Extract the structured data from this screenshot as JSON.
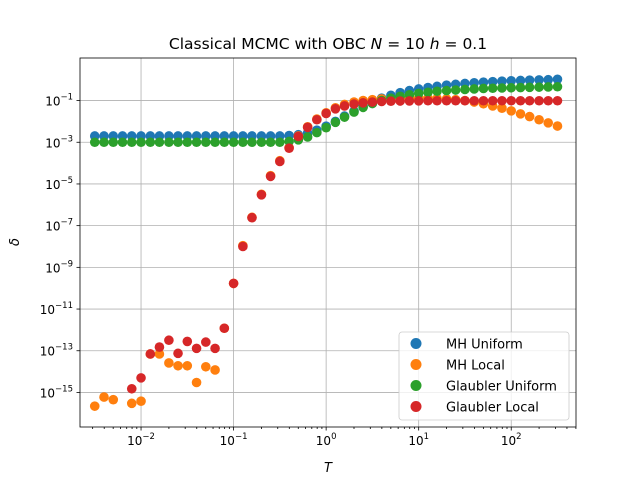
{
  "chart_data": {
    "type": "scatter",
    "title_parts": [
      "Classical MCMC with OBC ",
      "N",
      " =  10 ",
      "h",
      " =  0.1"
    ],
    "xlabel": "T",
    "ylabel": "δ",
    "xscale": "log",
    "yscale": "log",
    "xlim": [
      0.00219,
      501
    ],
    "ylim": [
      2.2e-17,
      11.0
    ],
    "grid": true,
    "legend_position": "lower right",
    "x_ticks": [
      {
        "value": 0.01,
        "base": "10",
        "exp": "−2"
      },
      {
        "value": 0.1,
        "base": "10",
        "exp": "−1"
      },
      {
        "value": 1,
        "base": "10",
        "exp": "0"
      },
      {
        "value": 10,
        "base": "10",
        "exp": "1"
      },
      {
        "value": 100,
        "base": "10",
        "exp": "2"
      }
    ],
    "y_ticks": [
      {
        "value": 1e-15,
        "base": "10",
        "exp": "−15"
      },
      {
        "value": 1e-13,
        "base": "10",
        "exp": "−13"
      },
      {
        "value": 1e-11,
        "base": "10",
        "exp": "−11"
      },
      {
        "value": 1e-09,
        "base": "10",
        "exp": "−9"
      },
      {
        "value": 1e-07,
        "base": "10",
        "exp": "−7"
      },
      {
        "value": 1e-05,
        "base": "10",
        "exp": "−5"
      },
      {
        "value": 0.001,
        "base": "10",
        "exp": "−3"
      },
      {
        "value": 0.1,
        "base": "10",
        "exp": "−1"
      }
    ],
    "x": [
      0.00316,
      0.00398,
      0.00501,
      0.00631,
      0.00794,
      0.01,
      0.0126,
      0.0158,
      0.02,
      0.0251,
      0.0316,
      0.0398,
      0.0501,
      0.0631,
      0.0794,
      0.1,
      0.126,
      0.158,
      0.2,
      0.251,
      0.316,
      0.398,
      0.501,
      0.631,
      0.794,
      1.0,
      1.26,
      1.58,
      2.0,
      2.51,
      3.16,
      3.98,
      5.01,
      6.31,
      7.94,
      10.0,
      12.6,
      15.8,
      20.0,
      25.1,
      31.6,
      39.8,
      50.1,
      63.1,
      79.4,
      100,
      126,
      158,
      200,
      251,
      316
    ],
    "series": [
      {
        "name": "MH Uniform",
        "color": "#1f77b4",
        "values": [
          0.002,
          0.002,
          0.002,
          0.002,
          0.002,
          0.002,
          0.002,
          0.002,
          0.002,
          0.002,
          0.002,
          0.002,
          0.002,
          0.002,
          0.002,
          0.002,
          0.002,
          0.002,
          0.002,
          0.002,
          0.002,
          0.0021,
          0.0023,
          0.0028,
          0.0038,
          0.0059,
          0.01,
          0.018,
          0.031,
          0.055,
          0.089,
          0.13,
          0.18,
          0.24,
          0.3,
          0.36,
          0.42,
          0.48,
          0.55,
          0.6,
          0.66,
          0.71,
          0.76,
          0.81,
          0.85,
          0.89,
          0.92,
          0.95,
          0.98,
          1.0,
          1.05
        ]
      },
      {
        "name": "MH Local",
        "color": "#ff7f0e",
        "values": [
          2.2e-16,
          6e-16,
          4.5e-16,
          null,
          3e-16,
          3.8e-16,
          7e-14,
          7e-14,
          2.6e-14,
          1.9e-14,
          1.9e-14,
          3e-15,
          1.7e-14,
          1.2e-14,
          1.2e-12,
          1.7e-10,
          1.1e-08,
          2.5e-07,
          3.2e-06,
          2.5e-05,
          0.00013,
          0.00055,
          0.002,
          0.0055,
          0.013,
          0.026,
          0.045,
          0.065,
          0.085,
          0.1,
          0.11,
          0.12,
          0.125,
          0.13,
          0.13,
          0.13,
          0.13,
          0.125,
          0.12,
          0.11,
          0.1,
          0.085,
          0.07,
          0.055,
          0.043,
          0.032,
          0.023,
          0.017,
          0.012,
          0.0085,
          0.006
        ]
      },
      {
        "name": "Glaubler Uniform",
        "color": "#2ca02c",
        "values": [
          0.001,
          0.001,
          0.001,
          0.001,
          0.001,
          0.001,
          0.001,
          0.001,
          0.001,
          0.001,
          0.001,
          0.001,
          0.001,
          0.001,
          0.001,
          0.001,
          0.001,
          0.001,
          0.001,
          0.001,
          0.001,
          0.0011,
          0.0013,
          0.0018,
          0.0029,
          0.005,
          0.009,
          0.016,
          0.028,
          0.047,
          0.072,
          0.1,
          0.13,
          0.16,
          0.19,
          0.22,
          0.25,
          0.28,
          0.3,
          0.32,
          0.34,
          0.36,
          0.38,
          0.39,
          0.4,
          0.41,
          0.42,
          0.43,
          0.44,
          0.45,
          0.46
        ]
      },
      {
        "name": "Glaubler Local",
        "color": "#d62728",
        "values": [
          null,
          null,
          null,
          null,
          1.5e-15,
          5e-15,
          7e-14,
          1.5e-13,
          3.2e-13,
          7.5e-14,
          2.8e-13,
          1.3e-13,
          2.6e-13,
          1.3e-13,
          1.2e-12,
          1.7e-10,
          1e-08,
          2.4e-07,
          3e-06,
          2.3e-05,
          0.00012,
          0.00052,
          0.0019,
          0.0052,
          0.012,
          0.024,
          0.04,
          0.055,
          0.068,
          0.078,
          0.085,
          0.09,
          0.093,
          0.095,
          0.096,
          0.097,
          0.098,
          0.098,
          0.098,
          0.098,
          0.098,
          0.098,
          0.098,
          0.098,
          0.098,
          0.098,
          0.098,
          0.098,
          0.098,
          0.098,
          0.098
        ]
      }
    ]
  }
}
